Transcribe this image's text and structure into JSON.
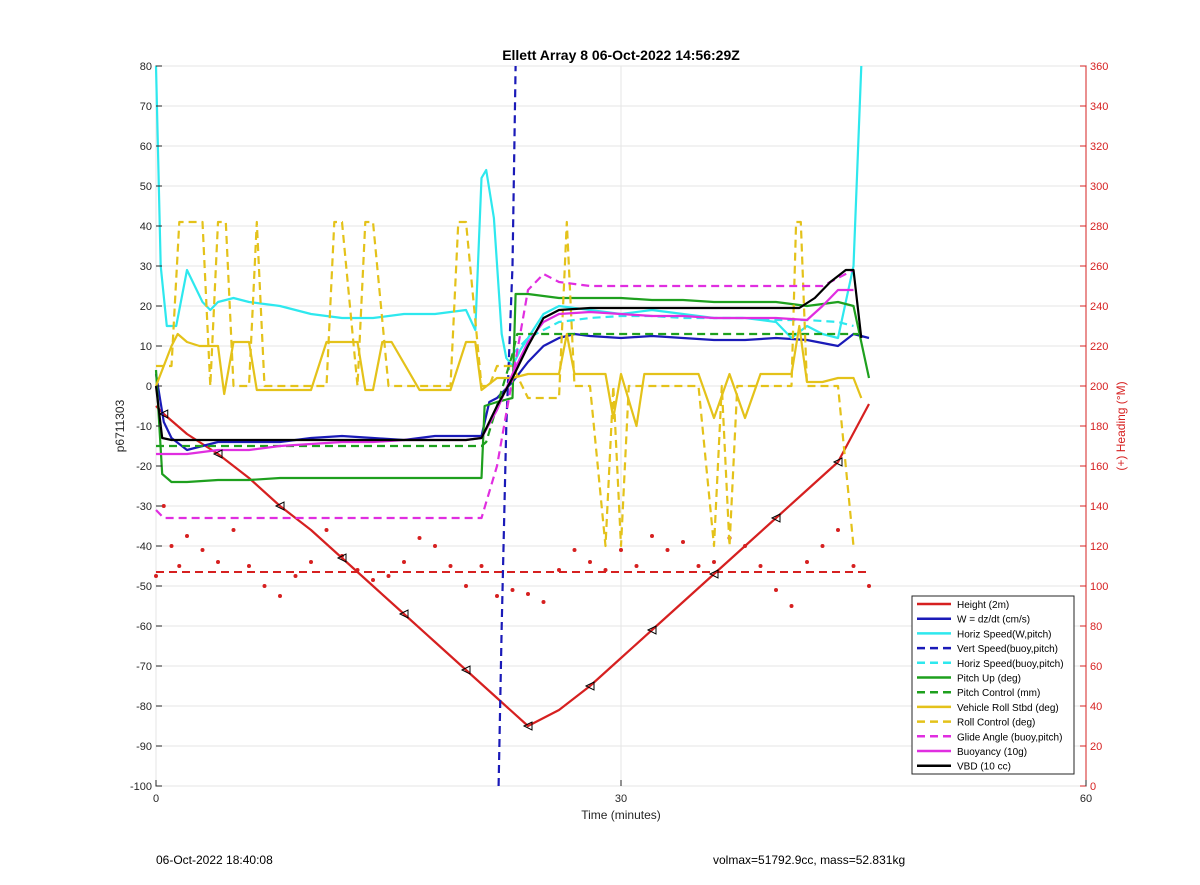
{
  "footer": {
    "left": "06-Oct-2022 18:40:08",
    "right": "volmax=51792.9cc, mass=52.831kg"
  },
  "chart_data": {
    "type": "line",
    "title": "Ellett Array 8 06-Oct-2022 14:56:29Z",
    "xlabel": "Time (minutes)",
    "ylabel": "p6711303",
    "y2label": "(+) Heading (°M)",
    "xlim": [
      0,
      60
    ],
    "ylim": [
      -100,
      80
    ],
    "y2lim": [
      0,
      360
    ],
    "xticks": [
      "0",
      "30",
      "60"
    ],
    "yticks": [
      "80",
      "70",
      "60",
      "50",
      "40",
      "30",
      "20",
      "10",
      "0",
      "-10",
      "-20",
      "-30",
      "-40",
      "-50",
      "-60",
      "-70",
      "-80",
      "-90",
      "-100"
    ],
    "y2ticks": [
      "360",
      "340",
      "320",
      "300",
      "280",
      "260",
      "240",
      "220",
      "200",
      "180",
      "160",
      "140",
      "120",
      "100",
      "80",
      "60",
      "40",
      "20",
      "0"
    ],
    "grid": true,
    "legend_position": "bottom-right",
    "series": [
      {
        "name": "Height (2m)",
        "color": "#d62020",
        "style": "solid",
        "x": [
          0,
          0.5,
          2,
          4,
          6,
          8,
          10,
          12,
          14,
          16,
          18,
          20,
          22,
          24,
          26,
          28,
          30,
          32,
          34,
          36,
          38,
          40,
          42,
          44,
          46
        ],
        "y": [
          -5,
          -7,
          -12,
          -17,
          -23,
          -30,
          -36,
          -43,
          -50,
          -57,
          -64,
          -71,
          -78,
          -85,
          -81,
          -75,
          -68,
          -61,
          -54,
          -47,
          -40,
          -33,
          -26,
          -19,
          -4.5
        ]
      },
      {
        "name": "W = dz/dt (cm/s)",
        "color": "#1a1ab8",
        "style": "solid",
        "x": [
          0,
          0.5,
          1,
          2,
          4,
          6,
          8,
          10,
          12,
          14,
          16,
          18,
          20,
          21,
          21.5,
          22,
          23,
          24,
          25,
          26,
          27,
          28,
          30,
          32,
          34,
          36,
          38,
          40,
          42,
          44,
          45,
          46
        ],
        "y": [
          3,
          -9,
          -13,
          -16,
          -14,
          -14,
          -14,
          -13,
          -12.5,
          -13,
          -13.5,
          -12.5,
          -12.5,
          -12.5,
          -4,
          -3,
          1,
          6,
          10,
          12,
          13,
          12.5,
          12,
          12.5,
          12,
          11.5,
          11.5,
          12,
          11.5,
          10,
          13,
          12
        ]
      },
      {
        "name": "Horiz Speed(W,pitch)",
        "color": "#2ee8ee",
        "style": "solid",
        "x": [
          0,
          0.3,
          0.7,
          1.3,
          2,
          3,
          3.5,
          4,
          5,
          6,
          8,
          10,
          12,
          14,
          16,
          18,
          20,
          20.6,
          21,
          21.3,
          21.8,
          22.3,
          22.6,
          23,
          23.5,
          24,
          25,
          26,
          28,
          30,
          32,
          34,
          36,
          38,
          40,
          41,
          42,
          43,
          44,
          45,
          45.5
        ],
        "y": [
          80,
          30,
          15,
          15,
          29,
          21,
          19,
          21,
          22,
          21,
          20,
          18,
          17,
          17,
          18,
          18,
          19,
          14,
          52,
          54,
          42,
          13,
          7,
          5,
          9,
          12,
          18,
          20,
          19,
          18,
          19,
          18,
          17,
          17,
          16,
          12,
          15,
          13,
          12,
          30,
          80
        ]
      },
      {
        "name": "Vert Speed(buoy,pitch)",
        "color": "#1a1ab8",
        "style": "dashed",
        "x": [
          22.1,
          22.3,
          22.6,
          23.0,
          23.2
        ],
        "y": [
          -100,
          -60,
          -10,
          30,
          80
        ]
      },
      {
        "name": "Horiz Speed(buoy,pitch)",
        "color": "#2ee8ee",
        "style": "dashed",
        "x": [
          23,
          24,
          25,
          26,
          28,
          30,
          32,
          34,
          36,
          38,
          40,
          42,
          44,
          45
        ],
        "y": [
          8,
          12,
          14,
          16,
          17,
          17.5,
          17.5,
          17,
          17,
          17,
          16.5,
          16.5,
          16,
          15
        ]
      },
      {
        "name": "Pitch Up (deg)",
        "color": "#1ea01e",
        "style": "solid",
        "x": [
          0,
          0.4,
          1,
          2,
          4,
          6,
          8,
          10,
          12,
          14,
          16,
          18,
          20,
          21,
          21.2,
          22,
          23,
          23.2,
          24,
          26,
          28,
          30,
          32,
          34,
          36,
          38,
          40,
          42,
          44,
          45,
          46
        ],
        "y": [
          4,
          -22,
          -24,
          -24,
          -23.5,
          -23.5,
          -23,
          -23,
          -23,
          -23,
          -23,
          -23,
          -23,
          -23,
          -5,
          -4,
          -3,
          23,
          23,
          22,
          22,
          22,
          21.5,
          21.5,
          21,
          21,
          21,
          20,
          21,
          20,
          2
        ]
      },
      {
        "name": "Pitch Control (mm)",
        "color": "#1ea01e",
        "style": "dashed",
        "x": [
          0,
          21,
          21.3,
          23.0,
          23.3,
          27,
          45.3
        ],
        "y": [
          -15,
          -15,
          -14,
          8,
          13,
          13,
          13
        ]
      },
      {
        "name": "Vehicle Roll Stbd (deg)",
        "color": "#e4c21a",
        "style": "solid",
        "x": [
          0,
          1,
          1.4,
          2,
          2.8,
          3,
          4,
          4.4,
          5,
          6,
          6.5,
          7,
          10,
          11,
          13,
          13.5,
          14,
          14.6,
          15.2,
          17,
          18,
          19,
          20,
          20.6,
          21,
          22,
          23,
          24,
          25,
          26,
          26.5,
          27,
          28,
          29,
          29.5,
          30,
          31,
          31.5,
          33,
          34,
          35,
          36,
          37,
          38,
          39,
          40,
          41,
          41.5,
          42,
          43,
          44,
          45,
          45.5
        ],
        "y": [
          0,
          10,
          13,
          11,
          10,
          10,
          10,
          -2,
          11,
          11,
          -1,
          -1,
          -1,
          11,
          11,
          -1,
          -1,
          11,
          11,
          -1,
          -1,
          -1,
          11,
          11,
          -1,
          2,
          2,
          3,
          3,
          3,
          13,
          3,
          3,
          3,
          -8,
          3,
          -10,
          3,
          3,
          3,
          3,
          -8,
          3,
          -8,
          3,
          3,
          3,
          15,
          1,
          1,
          2,
          2,
          -3
        ]
      },
      {
        "name": "Roll Control (deg)",
        "color": "#e4c21a",
        "style": "dashed",
        "x": [
          0,
          0.5,
          1,
          1.5,
          2,
          3,
          3.5,
          4,
          4.5,
          5,
          6,
          6.5,
          7,
          9,
          11,
          11.5,
          12,
          13,
          13.5,
          14,
          15,
          15.5,
          17,
          19,
          19.5,
          20,
          21,
          21.5,
          22,
          23,
          24,
          25,
          26,
          26.5,
          27,
          27.5,
          28,
          29,
          29.5,
          30,
          30.5,
          31,
          32,
          33,
          34,
          35,
          36,
          36.5,
          37,
          37.5,
          38,
          40,
          41,
          41.3,
          41.6,
          42,
          44,
          45
        ],
        "y": [
          5,
          5,
          5,
          41,
          41,
          41,
          0,
          41,
          41,
          0,
          0,
          41,
          0,
          0,
          0,
          41,
          41,
          0,
          41,
          41,
          0,
          0,
          0,
          0,
          41,
          41,
          0,
          0,
          5,
          5,
          -3,
          -3,
          -3,
          41,
          0,
          0,
          0,
          -40,
          0,
          -40,
          0,
          0,
          0,
          0,
          0,
          0,
          -40,
          0,
          -40,
          0,
          0,
          0,
          0,
          41,
          41,
          0,
          0,
          -40
        ]
      },
      {
        "name": "Glide Angle (buoy,pitch)",
        "color": "#e02ee0",
        "style": "dashed",
        "x": [
          0,
          0.5,
          1,
          2,
          4,
          6,
          8,
          10,
          12,
          14,
          16,
          18,
          20,
          21,
          22,
          23,
          24,
          25,
          26,
          28,
          30,
          32,
          34,
          36,
          38,
          40,
          42,
          43,
          44,
          45
        ],
        "y": [
          -31,
          -33,
          -33,
          -33,
          -33,
          -33,
          -33,
          -33,
          -33,
          -33,
          -33,
          -33,
          -33,
          -33,
          -20,
          2,
          24,
          28,
          26,
          25,
          25,
          25,
          25,
          25,
          25,
          25,
          25,
          25,
          27,
          29
        ]
      },
      {
        "name": "Buoyancy (10g)",
        "color": "#e02ee0",
        "style": "solid",
        "x": [
          0,
          0.4,
          1,
          2,
          4,
          6,
          8,
          10,
          12,
          14,
          16,
          18,
          20,
          21,
          22,
          23,
          24,
          25,
          26,
          28,
          30,
          32,
          34,
          36,
          38,
          40,
          42,
          43,
          44,
          45
        ],
        "y": [
          -17,
          -17,
          -17,
          -17,
          -16,
          -16,
          -15,
          -14.5,
          -14,
          -14,
          -13.5,
          -13.5,
          -13.5,
          -13,
          -6,
          3,
          11,
          16,
          18,
          18.5,
          18,
          17.5,
          17.5,
          17,
          17,
          17,
          16.5,
          20,
          24,
          24
        ]
      },
      {
        "name": "VBD (10 cc)",
        "color": "#000000",
        "style": "solid",
        "x": [
          0,
          0.4,
          1,
          2,
          4,
          6,
          8,
          10,
          12,
          14,
          16,
          18,
          20,
          21,
          22,
          23,
          24,
          25,
          26,
          28,
          30,
          32,
          34,
          36,
          38,
          40,
          41.5,
          42.5,
          43.5,
          44.5,
          45,
          45.5
        ],
        "y": [
          0,
          -13,
          -13.5,
          -13.5,
          -13.5,
          -13.5,
          -13.5,
          -13.5,
          -13.5,
          -13.5,
          -13.5,
          -13.5,
          -13.5,
          -13,
          -5,
          2,
          10,
          17,
          19,
          19.5,
          19.5,
          19.5,
          19.5,
          19.5,
          19.5,
          19.5,
          19.5,
          22,
          26,
          29,
          29,
          12
        ]
      }
    ],
    "heading": {
      "name": "(+) Heading (°M)",
      "color": "#d62020",
      "points_x": [
        0,
        0.5,
        1,
        1.5,
        2,
        3,
        4,
        5,
        6,
        7,
        8,
        9,
        10,
        11,
        12,
        13,
        14,
        15,
        16,
        17,
        18,
        19,
        20,
        21,
        22,
        23,
        24,
        25,
        26,
        27,
        28,
        29,
        30,
        31,
        32,
        33,
        34,
        35,
        36,
        37,
        38,
        39,
        40,
        41,
        42,
        43,
        44,
        45,
        46
      ],
      "points_y": [
        105,
        140,
        120,
        110,
        125,
        118,
        112,
        128,
        110,
        100,
        95,
        105,
        112,
        128,
        115,
        108,
        103,
        105,
        112,
        124,
        120,
        110,
        100,
        110,
        95,
        98,
        96,
        92,
        108,
        118,
        112,
        108,
        118,
        110,
        125,
        118,
        122,
        110,
        112,
        124,
        120,
        110,
        98,
        90,
        112,
        120,
        128,
        110,
        100
      ],
      "ref_value": 107
    },
    "annotations": [
      "Height markers: open black triangles along red Height line"
    ]
  }
}
